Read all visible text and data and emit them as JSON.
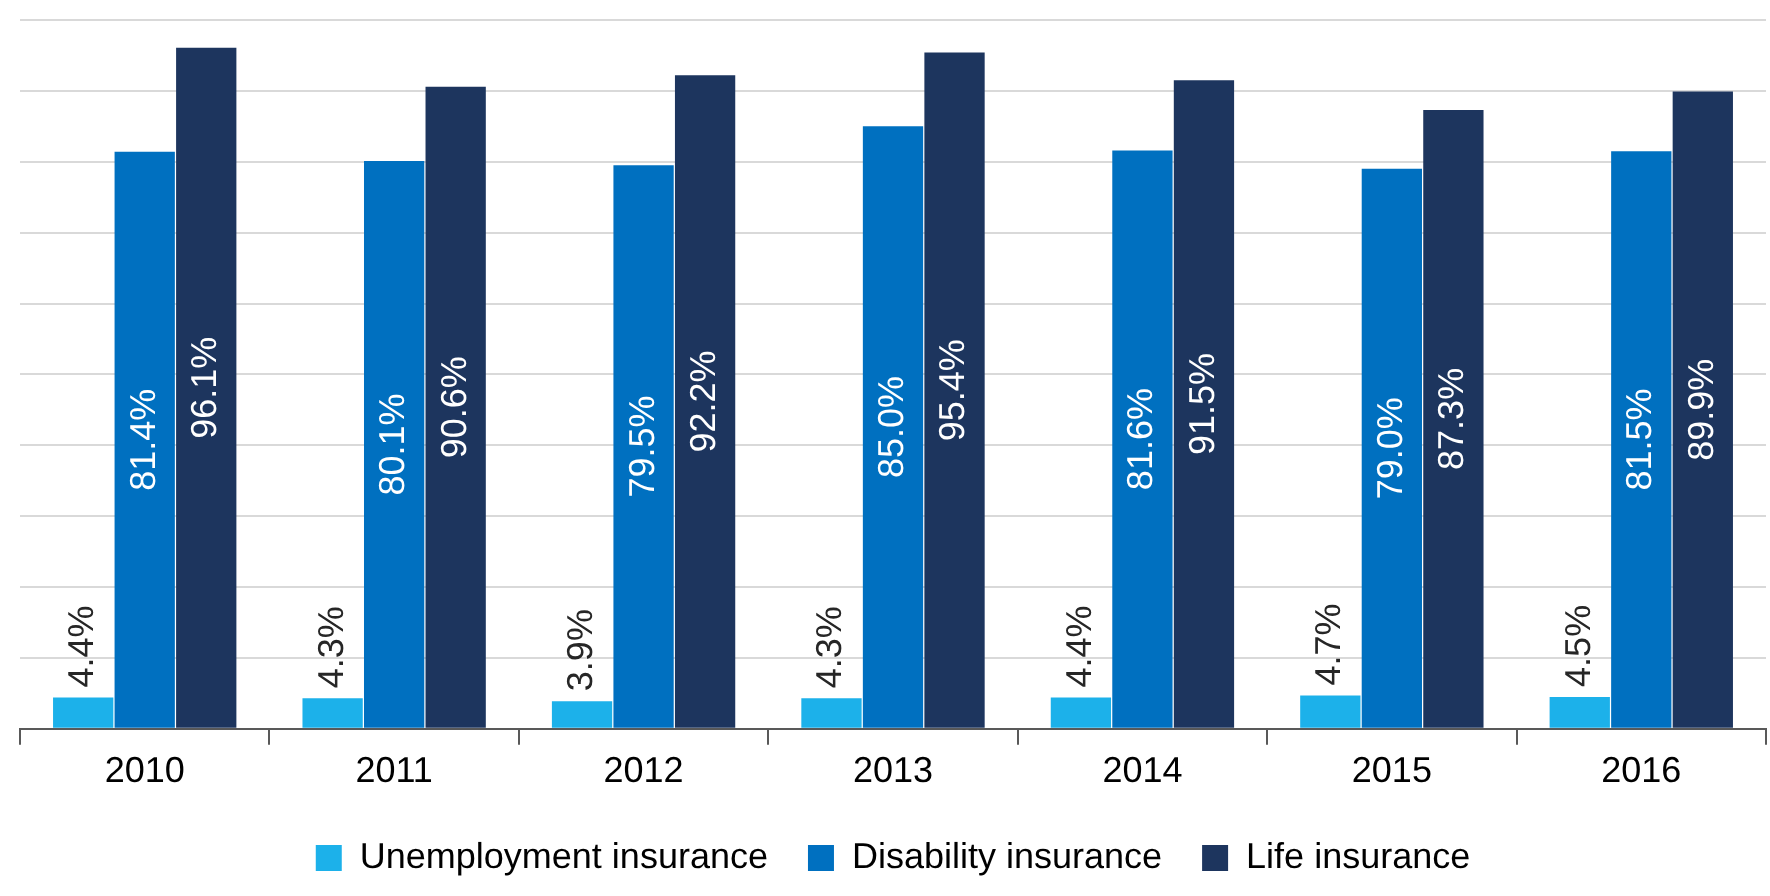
{
  "chart_data": {
    "type": "bar",
    "categories": [
      "2010",
      "2011",
      "2012",
      "2013",
      "2014",
      "2015",
      "2016"
    ],
    "series": [
      {
        "name": "Unemployment insurance",
        "color": "#1cb1ea",
        "values": [
          4.4,
          4.3,
          3.9,
          4.3,
          4.4,
          4.7,
          4.5
        ],
        "value_labels": [
          "4.4%",
          "4.3%",
          "3.9%",
          "4.3%",
          "4.4%",
          "4.7%",
          "4.5%"
        ]
      },
      {
        "name": "Disability insurance",
        "color": "#0070c0",
        "values": [
          81.4,
          80.1,
          79.5,
          85.0,
          81.6,
          79.0,
          81.5
        ],
        "value_labels": [
          "81.4%",
          "80.1%",
          "79.5%",
          "85.0%",
          "81.6%",
          "79.0%",
          "81.5%"
        ]
      },
      {
        "name": "Life insurance",
        "color": "#1d355e",
        "values": [
          96.1,
          90.6,
          92.2,
          95.4,
          91.5,
          87.3,
          89.9
        ],
        "value_labels": [
          "96.1%",
          "90.6%",
          "92.2%",
          "95.4%",
          "91.5%",
          "87.3%",
          "89.9%"
        ]
      }
    ],
    "ylim": [
      0,
      100
    ],
    "yticks": [
      {
        "value": 0,
        "label": null
      },
      {
        "value": 10,
        "label": null
      },
      {
        "value": 20,
        "label": null
      },
      {
        "value": 30,
        "label": null
      },
      {
        "value": 40,
        "label": null
      },
      {
        "value": 50,
        "label": null
      },
      {
        "value": 60,
        "label": null
      },
      {
        "value": 70,
        "label": null
      },
      {
        "value": 80,
        "label": null
      },
      {
        "value": 90,
        "label": null
      },
      {
        "value": 100,
        "label": null
      }
    ],
    "grid": "y",
    "legend": "bottom",
    "tick_labels": "x"
  }
}
